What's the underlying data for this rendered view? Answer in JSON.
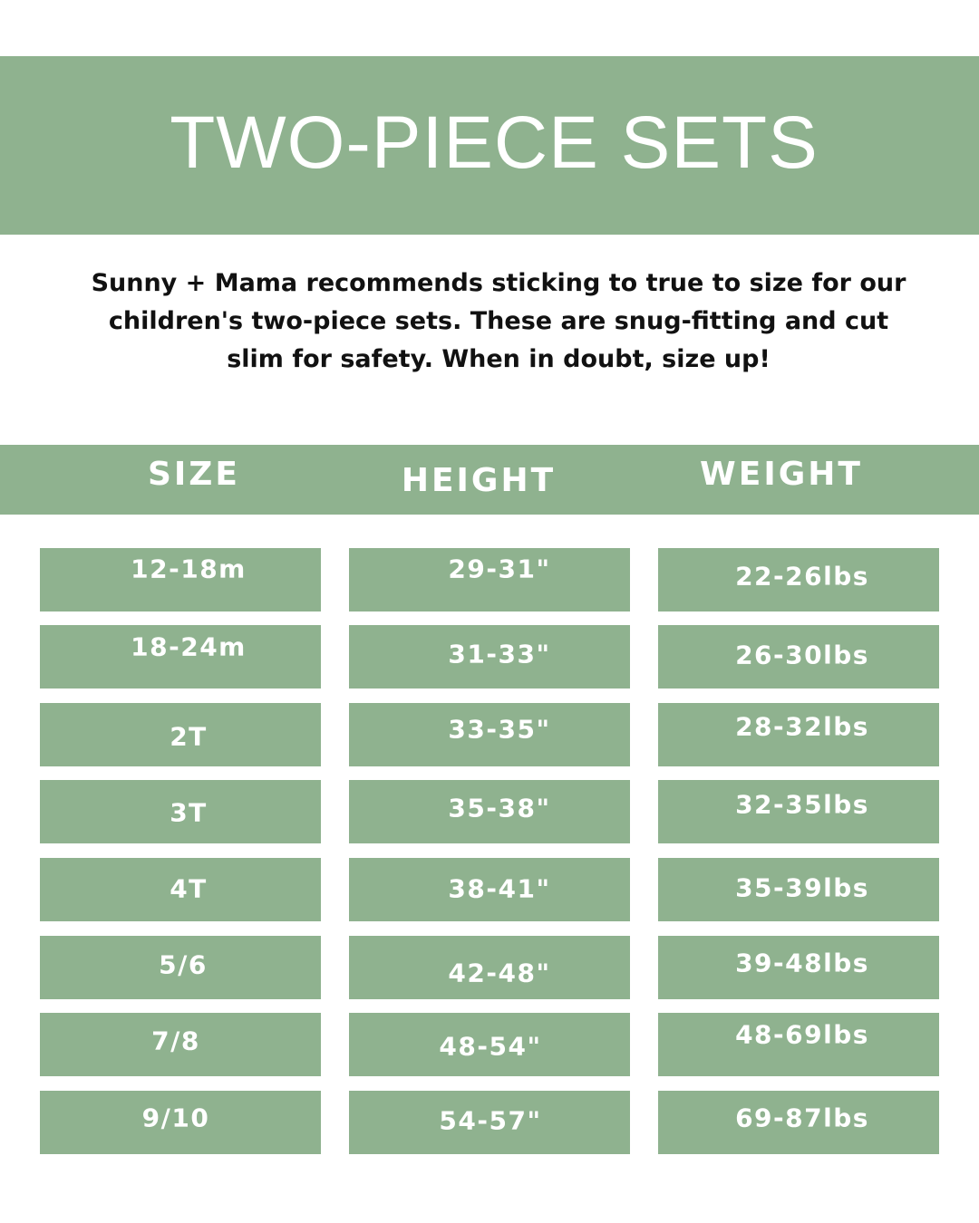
{
  "title": "TWO-PIECE SETS",
  "intro_lines": [
    "Sunny + Mama recommends sticking to true to size for our",
    "children's two-piece sets. These are snug-fitting and cut",
    "slim  for safety. When in doubt, size up!"
  ],
  "columns": [
    "SIZE",
    "HEIGHT",
    "WEIGHT"
  ],
  "rows": [
    [
      "12-18m",
      "29-31\"",
      "22-26lbs"
    ],
    [
      "18-24m",
      "31-33\"",
      "26-30lbs"
    ],
    [
      "2T",
      "33-35\"",
      "28-32lbs"
    ],
    [
      "3T",
      "35-38\"",
      "32-35lbs"
    ],
    [
      "4T",
      "38-41\"",
      "35-39lbs"
    ],
    [
      "5/6",
      "42-48\"",
      "39-48lbs"
    ],
    [
      "7/8",
      "48-54\"",
      "48-69lbs"
    ],
    [
      "9/10",
      "54-57\"",
      "69-87lbs"
    ]
  ],
  "colors": {
    "accent": "#8fb28f",
    "text_light": "#ffffff",
    "text_dark": "#111111"
  }
}
